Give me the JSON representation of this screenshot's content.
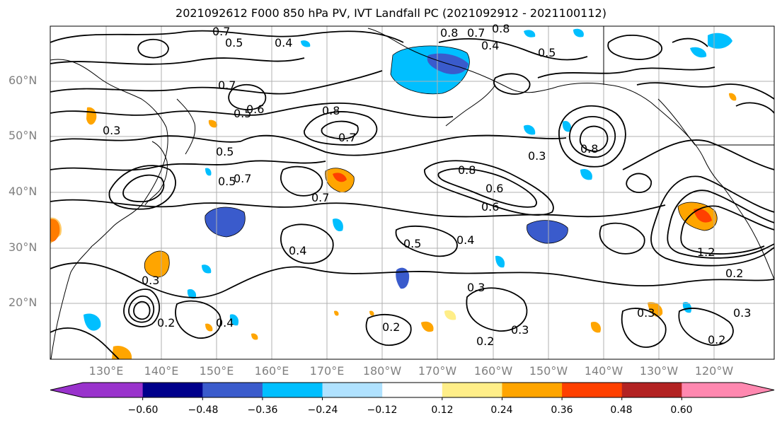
{
  "title": "2021092612 F000 850 hPa PV, IVT Landfall PC (2021092912 - 2021100112)",
  "map": {
    "lat_labels": [
      "60°N",
      "50°N",
      "40°N",
      "30°N",
      "20°N"
    ],
    "lat_values": [
      60,
      50,
      40,
      30,
      20
    ],
    "lon_labels": [
      "130°E",
      "140°E",
      "150°E",
      "160°E",
      "170°E",
      "180°W",
      "170°W",
      "160°W",
      "150°W",
      "140°W",
      "130°W",
      "120°W"
    ],
    "lon_values": [
      130,
      140,
      150,
      160,
      170,
      180,
      190,
      200,
      210,
      220,
      230,
      240
    ],
    "lon_range": [
      120,
      251
    ],
    "lat_range": [
      10,
      70
    ],
    "grid": true,
    "contour_labels": [
      "0.7",
      "0.5",
      "0.4",
      "0.8",
      "0.7",
      "0.8",
      "0.4",
      "0.5",
      "0.7",
      "0.6",
      "0.5",
      "0.3",
      "0.5",
      "0.8",
      "0.7",
      "0.8",
      "0.6",
      "0.8",
      "0.3",
      "0.5",
      "0.7",
      "0.6",
      "0.7",
      "0.4",
      "0.4",
      "0.5",
      "0.3",
      "0.2",
      "0.4",
      "0.2",
      "0.3",
      "0.3",
      "0.2",
      "0.2",
      "0.3",
      "1.2",
      "0.2",
      "0.3"
    ],
    "contour_color": "#000000"
  },
  "colorbar": {
    "colors": [
      "#9932cc",
      "#00008b",
      "#3a5bcc",
      "#00bfff",
      "#b0e2ff",
      "#ffffff",
      "#ffee88",
      "#ffa500",
      "#ff4000",
      "#b22222",
      "#ff88b0"
    ],
    "ticks": [
      "−0.60",
      "−0.48",
      "−0.36",
      "−0.24",
      "−0.12",
      "0.12",
      "0.24",
      "0.36",
      "0.48",
      "0.60"
    ]
  }
}
